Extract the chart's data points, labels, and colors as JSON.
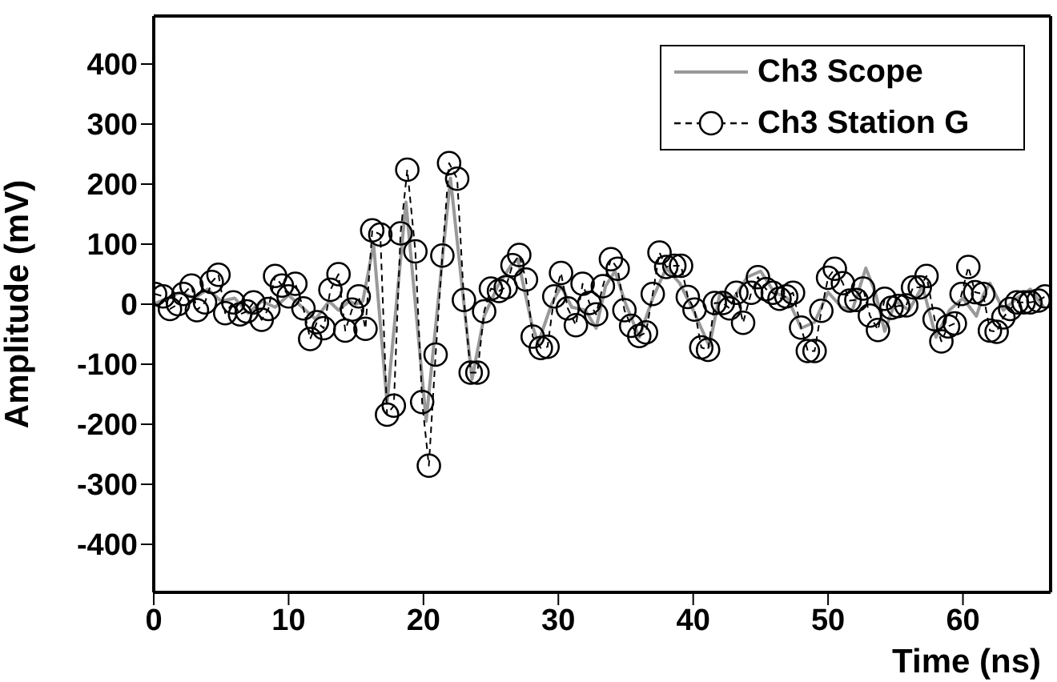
{
  "chart_data": {
    "type": "line",
    "xlabel": "Time (ns)",
    "ylabel": "Amplitude (mV)",
    "xlim": [
      0,
      66.5
    ],
    "xticks": [
      0,
      10,
      20,
      30,
      40,
      50,
      60
    ],
    "ylim": [
      -480,
      480
    ],
    "yticks": [
      -400,
      -300,
      -200,
      -100,
      0,
      100,
      200,
      300,
      400
    ],
    "grid": false,
    "legend": "top right",
    "series": [
      {
        "name": "Ch3 Scope",
        "color": "#999999",
        "marker": "none",
        "line_style": "solid",
        "x": [
          0,
          2,
          3,
          4,
          5,
          6,
          7,
          8,
          9,
          10,
          11,
          12,
          13,
          13.7,
          14.5,
          15,
          15.5,
          16.3,
          17.3,
          18.7,
          20.2,
          22,
          23.6,
          24.5,
          25.5,
          26.5,
          27,
          28,
          28.5,
          29.5,
          30.2,
          31,
          32,
          32.8,
          33.5,
          34.2,
          35,
          36,
          37,
          38,
          39,
          40,
          41.2,
          42,
          43,
          44,
          45,
          46,
          47,
          48,
          49,
          50,
          51,
          51.8,
          52.8,
          53.5,
          54.2,
          55,
          56,
          57,
          58,
          59,
          60,
          61,
          61.5,
          62,
          63,
          64,
          65,
          66
        ],
        "values": [
          0,
          20,
          10,
          25,
          5,
          10,
          -15,
          5,
          -5,
          15,
          -5,
          -25,
          5,
          -10,
          5,
          0,
          5,
          100,
          -165,
          170,
          -195,
          210,
          -125,
          -20,
          30,
          65,
          75,
          -30,
          -65,
          0,
          30,
          -5,
          -10,
          -40,
          30,
          55,
          0,
          -55,
          10,
          60,
          35,
          -10,
          -70,
          20,
          10,
          45,
          55,
          20,
          10,
          -40,
          -30,
          20,
          -5,
          -10,
          60,
          20,
          -45,
          5,
          -10,
          30,
          -55,
          -10,
          10,
          -20,
          15,
          35,
          -10,
          10,
          25,
          -5
        ]
      },
      {
        "name": "Ch3 Station G",
        "color": "#000000",
        "marker": "circle",
        "line_style": "dashed",
        "x": [
          0.1,
          0.7,
          1.2,
          1.8,
          2.2,
          2.8,
          3.2,
          3.8,
          4.3,
          4.8,
          5.3,
          5.9,
          6.4,
          6.9,
          7.4,
          8.0,
          8.5,
          9.0,
          9.5,
          10.0,
          10.5,
          11.1,
          11.6,
          12.1,
          12.6,
          13.1,
          13.7,
          14.2,
          14.7,
          15.2,
          15.7,
          16.2,
          16.8,
          17.3,
          17.8,
          18.3,
          18.8,
          19.4,
          19.9,
          20.4,
          20.9,
          21.4,
          21.9,
          22.5,
          23.0,
          23.5,
          24.0,
          24.5,
          25.0,
          25.6,
          26.1,
          26.6,
          27.1,
          27.6,
          28.1,
          28.7,
          29.2,
          29.7,
          30.2,
          30.7,
          31.3,
          31.8,
          32.3,
          32.8,
          33.3,
          33.9,
          34.4,
          34.9,
          35.4,
          36.0,
          36.5,
          37.0,
          37.5,
          38.0,
          38.6,
          39.1,
          39.6,
          40.1,
          40.6,
          41.1,
          41.6,
          42.2,
          42.7,
          43.2,
          43.7,
          44.3,
          44.8,
          45.4,
          45.9,
          46.4,
          46.9,
          47.4,
          48.0,
          48.5,
          49.0,
          49.5,
          50.0,
          50.5,
          51.1,
          51.6,
          52.1,
          52.6,
          53.1,
          53.7,
          54.2,
          54.7,
          55.2,
          55.8,
          56.3,
          56.8,
          57.3,
          57.9,
          58.4,
          58.9,
          59.4,
          59.9,
          60.4,
          60.9,
          61.5,
          62.0,
          62.5,
          63.0,
          63.5,
          64.0,
          64.5,
          65.0,
          65.6,
          66.1
        ],
        "values": [
          17,
          13,
          -8,
          0,
          17,
          31,
          -10,
          3,
          37,
          49,
          -15,
          3,
          -17,
          -12,
          3,
          -26,
          -8,
          47,
          31,
          13,
          34,
          -7,
          -58,
          -30,
          -40,
          24,
          50,
          -44,
          -9,
          13,
          -41,
          123,
          116,
          -184,
          -169,
          118,
          224,
          88,
          -163,
          -269,
          -84,
          81,
          235,
          209,
          7,
          -114,
          -114,
          -12,
          26,
          22,
          28,
          65,
          82,
          41,
          -54,
          -73,
          -71,
          13,
          52,
          -7,
          -35,
          34,
          2,
          -17,
          30,
          75,
          59,
          -10,
          -36,
          -53,
          -47,
          17,
          86,
          62,
          64,
          64,
          12,
          -9,
          -72,
          -76,
          2,
          2,
          -7,
          19,
          -31,
          19,
          45,
          25,
          19,
          9,
          13,
          19,
          -39,
          -78,
          -78,
          -11,
          44,
          59,
          35,
          6,
          7,
          26,
          -19,
          -43,
          9,
          -6,
          -3,
          -2,
          28,
          28,
          47,
          -25,
          -62,
          -37,
          -32,
          17,
          62,
          20,
          17,
          -44,
          -46,
          -22,
          -8,
          3,
          3,
          3,
          6,
          13
        ]
      }
    ]
  }
}
